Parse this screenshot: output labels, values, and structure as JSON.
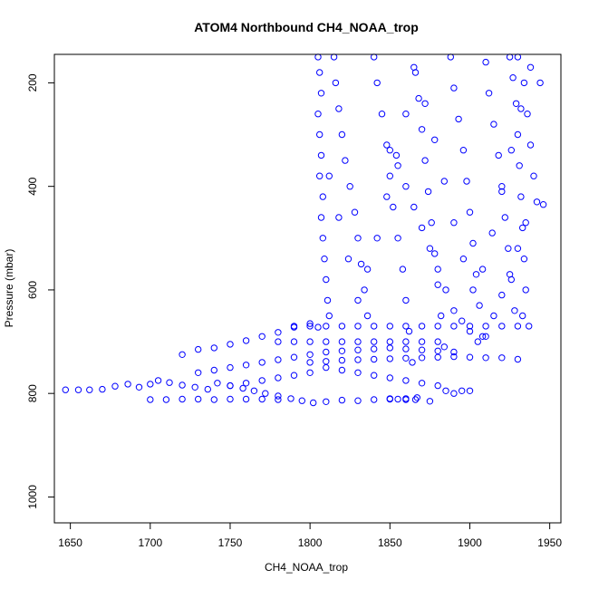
{
  "chart_data": {
    "type": "scatter",
    "title": "ATOM4 Northbound CH4_NOAA_trop",
    "xlabel": "CH4_NOAA_trop",
    "ylabel": "Pressure (mbar)",
    "xlim": [
      1640,
      1957
    ],
    "ylim": [
      1050,
      145
    ],
    "y_reversed": true,
    "x_ticks": [
      "1650",
      "1700",
      "1750",
      "1800",
      "1850",
      "1900",
      "1950"
    ],
    "y_ticks": [
      "200",
      "400",
      "600",
      "800",
      "1000"
    ],
    "marker": "open-circle",
    "color": "#0000ff",
    "grid": false,
    "legend": "none",
    "series": [
      {
        "values": [
          [
            1647,
            793
          ],
          [
            1655,
            793
          ],
          [
            1662,
            793
          ],
          [
            1670,
            792
          ],
          [
            1678,
            786
          ],
          [
            1686,
            782
          ],
          [
            1693,
            788
          ],
          [
            1700,
            782
          ],
          [
            1705,
            775
          ],
          [
            1712,
            779
          ],
          [
            1720,
            784
          ],
          [
            1728,
            788
          ],
          [
            1736,
            792
          ],
          [
            1742,
            780
          ],
          [
            1750,
            785
          ],
          [
            1758,
            790
          ],
          [
            1765,
            795
          ],
          [
            1772,
            800
          ],
          [
            1780,
            805
          ],
          [
            1788,
            810
          ],
          [
            1795,
            814
          ],
          [
            1802,
            818
          ],
          [
            1810,
            816
          ],
          [
            1820,
            813
          ],
          [
            1830,
            814
          ],
          [
            1840,
            812
          ],
          [
            1850,
            811
          ],
          [
            1860,
            810
          ],
          [
            1866,
            812
          ],
          [
            1700,
            812
          ],
          [
            1710,
            812
          ],
          [
            1720,
            811
          ],
          [
            1730,
            811
          ],
          [
            1740,
            812
          ],
          [
            1750,
            811
          ],
          [
            1760,
            811
          ],
          [
            1770,
            811
          ],
          [
            1780,
            812
          ],
          [
            1720,
            725
          ],
          [
            1730,
            715
          ],
          [
            1740,
            712
          ],
          [
            1750,
            705
          ],
          [
            1760,
            698
          ],
          [
            1770,
            690
          ],
          [
            1780,
            682
          ],
          [
            1790,
            672
          ],
          [
            1800,
            665
          ],
          [
            1805,
            672
          ],
          [
            1730,
            760
          ],
          [
            1740,
            755
          ],
          [
            1750,
            750
          ],
          [
            1760,
            745
          ],
          [
            1770,
            740
          ],
          [
            1780,
            735
          ],
          [
            1790,
            730
          ],
          [
            1800,
            725
          ],
          [
            1810,
            720
          ],
          [
            1820,
            718
          ],
          [
            1830,
            716
          ],
          [
            1840,
            714
          ],
          [
            1850,
            712
          ],
          [
            1860,
            714
          ],
          [
            1870,
            716
          ],
          [
            1880,
            718
          ],
          [
            1890,
            720
          ],
          [
            1780,
            700
          ],
          [
            1790,
            700
          ],
          [
            1800,
            700
          ],
          [
            1810,
            700
          ],
          [
            1820,
            700
          ],
          [
            1830,
            700
          ],
          [
            1840,
            700
          ],
          [
            1850,
            700
          ],
          [
            1860,
            700
          ],
          [
            1870,
            700
          ],
          [
            1880,
            700
          ],
          [
            1790,
            670
          ],
          [
            1800,
            670
          ],
          [
            1810,
            670
          ],
          [
            1820,
            670
          ],
          [
            1830,
            670
          ],
          [
            1840,
            670
          ],
          [
            1850,
            670
          ],
          [
            1860,
            670
          ],
          [
            1870,
            670
          ],
          [
            1880,
            670
          ],
          [
            1890,
            670
          ],
          [
            1900,
            670
          ],
          [
            1910,
            670
          ],
          [
            1920,
            670
          ],
          [
            1930,
            670
          ],
          [
            1937,
            670
          ],
          [
            1800,
            740
          ],
          [
            1810,
            738
          ],
          [
            1820,
            736
          ],
          [
            1830,
            735
          ],
          [
            1840,
            734
          ],
          [
            1850,
            733
          ],
          [
            1860,
            732
          ],
          [
            1870,
            731
          ],
          [
            1880,
            730
          ],
          [
            1890,
            729
          ],
          [
            1900,
            730
          ],
          [
            1910,
            731
          ],
          [
            1920,
            731
          ],
          [
            1930,
            734
          ],
          [
            1850,
            810
          ],
          [
            1855,
            811
          ],
          [
            1860,
            812
          ],
          [
            1867,
            808
          ],
          [
            1875,
            815
          ],
          [
            1885,
            795
          ],
          [
            1890,
            800
          ],
          [
            1895,
            795
          ],
          [
            1900,
            795
          ],
          [
            1880,
            785
          ],
          [
            1870,
            780
          ],
          [
            1860,
            775
          ],
          [
            1850,
            770
          ],
          [
            1840,
            765
          ],
          [
            1830,
            760
          ],
          [
            1820,
            755
          ],
          [
            1810,
            750
          ],
          [
            1800,
            760
          ],
          [
            1790,
            765
          ],
          [
            1780,
            770
          ],
          [
            1770,
            775
          ],
          [
            1760,
            780
          ],
          [
            1750,
            785
          ],
          [
            1805,
            150
          ],
          [
            1806,
            180
          ],
          [
            1807,
            220
          ],
          [
            1805,
            260
          ],
          [
            1806,
            300
          ],
          [
            1807,
            340
          ],
          [
            1806,
            380
          ],
          [
            1808,
            420
          ],
          [
            1807,
            460
          ],
          [
            1808,
            500
          ],
          [
            1809,
            540
          ],
          [
            1810,
            580
          ],
          [
            1811,
            620
          ],
          [
            1812,
            650
          ],
          [
            1815,
            150
          ],
          [
            1816,
            200
          ],
          [
            1818,
            250
          ],
          [
            1820,
            300
          ],
          [
            1822,
            350
          ],
          [
            1825,
            400
          ],
          [
            1828,
            450
          ],
          [
            1830,
            500
          ],
          [
            1832,
            550
          ],
          [
            1834,
            600
          ],
          [
            1836,
            650
          ],
          [
            1840,
            150
          ],
          [
            1842,
            200
          ],
          [
            1845,
            260
          ],
          [
            1848,
            320
          ],
          [
            1850,
            380
          ],
          [
            1852,
            440
          ],
          [
            1855,
            500
          ],
          [
            1858,
            560
          ],
          [
            1860,
            620
          ],
          [
            1862,
            680
          ],
          [
            1864,
            740
          ],
          [
            1865,
            170
          ],
          [
            1868,
            230
          ],
          [
            1870,
            290
          ],
          [
            1872,
            350
          ],
          [
            1874,
            410
          ],
          [
            1876,
            470
          ],
          [
            1878,
            530
          ],
          [
            1880,
            590
          ],
          [
            1882,
            650
          ],
          [
            1884,
            710
          ],
          [
            1888,
            150
          ],
          [
            1890,
            210
          ],
          [
            1893,
            270
          ],
          [
            1896,
            330
          ],
          [
            1898,
            390
          ],
          [
            1900,
            450
          ],
          [
            1902,
            510
          ],
          [
            1904,
            570
          ],
          [
            1906,
            630
          ],
          [
            1908,
            690
          ],
          [
            1910,
            160
          ],
          [
            1912,
            220
          ],
          [
            1915,
            280
          ],
          [
            1918,
            340
          ],
          [
            1920,
            400
          ],
          [
            1922,
            460
          ],
          [
            1924,
            520
          ],
          [
            1926,
            580
          ],
          [
            1928,
            640
          ],
          [
            1925,
            150
          ],
          [
            1927,
            190
          ],
          [
            1929,
            240
          ],
          [
            1930,
            300
          ],
          [
            1931,
            360
          ],
          [
            1932,
            420
          ],
          [
            1933,
            480
          ],
          [
            1934,
            540
          ],
          [
            1935,
            600
          ],
          [
            1933,
            650
          ],
          [
            1930,
            150
          ],
          [
            1934,
            200
          ],
          [
            1936,
            260
          ],
          [
            1938,
            320
          ],
          [
            1940,
            380
          ],
          [
            1942,
            430
          ],
          [
            1946,
            435
          ],
          [
            1944,
            200
          ],
          [
            1938,
            170
          ],
          [
            1932,
            250
          ],
          [
            1926,
            330
          ],
          [
            1920,
            410
          ],
          [
            1914,
            490
          ],
          [
            1908,
            560
          ],
          [
            1902,
            600
          ],
          [
            1896,
            540
          ],
          [
            1890,
            470
          ],
          [
            1884,
            390
          ],
          [
            1878,
            310
          ],
          [
            1872,
            240
          ],
          [
            1866,
            180
          ],
          [
            1860,
            260
          ],
          [
            1854,
            340
          ],
          [
            1848,
            420
          ],
          [
            1842,
            500
          ],
          [
            1836,
            560
          ],
          [
            1830,
            620
          ],
          [
            1824,
            540
          ],
          [
            1818,
            460
          ],
          [
            1812,
            380
          ],
          [
            1850,
            330
          ],
          [
            1855,
            360
          ],
          [
            1860,
            400
          ],
          [
            1865,
            440
          ],
          [
            1870,
            480
          ],
          [
            1875,
            520
          ],
          [
            1880,
            560
          ],
          [
            1885,
            600
          ],
          [
            1890,
            640
          ],
          [
            1895,
            660
          ],
          [
            1900,
            680
          ],
          [
            1905,
            700
          ],
          [
            1910,
            690
          ],
          [
            1915,
            650
          ],
          [
            1920,
            610
          ],
          [
            1925,
            570
          ],
          [
            1930,
            520
          ],
          [
            1935,
            470
          ]
        ]
      }
    ]
  }
}
